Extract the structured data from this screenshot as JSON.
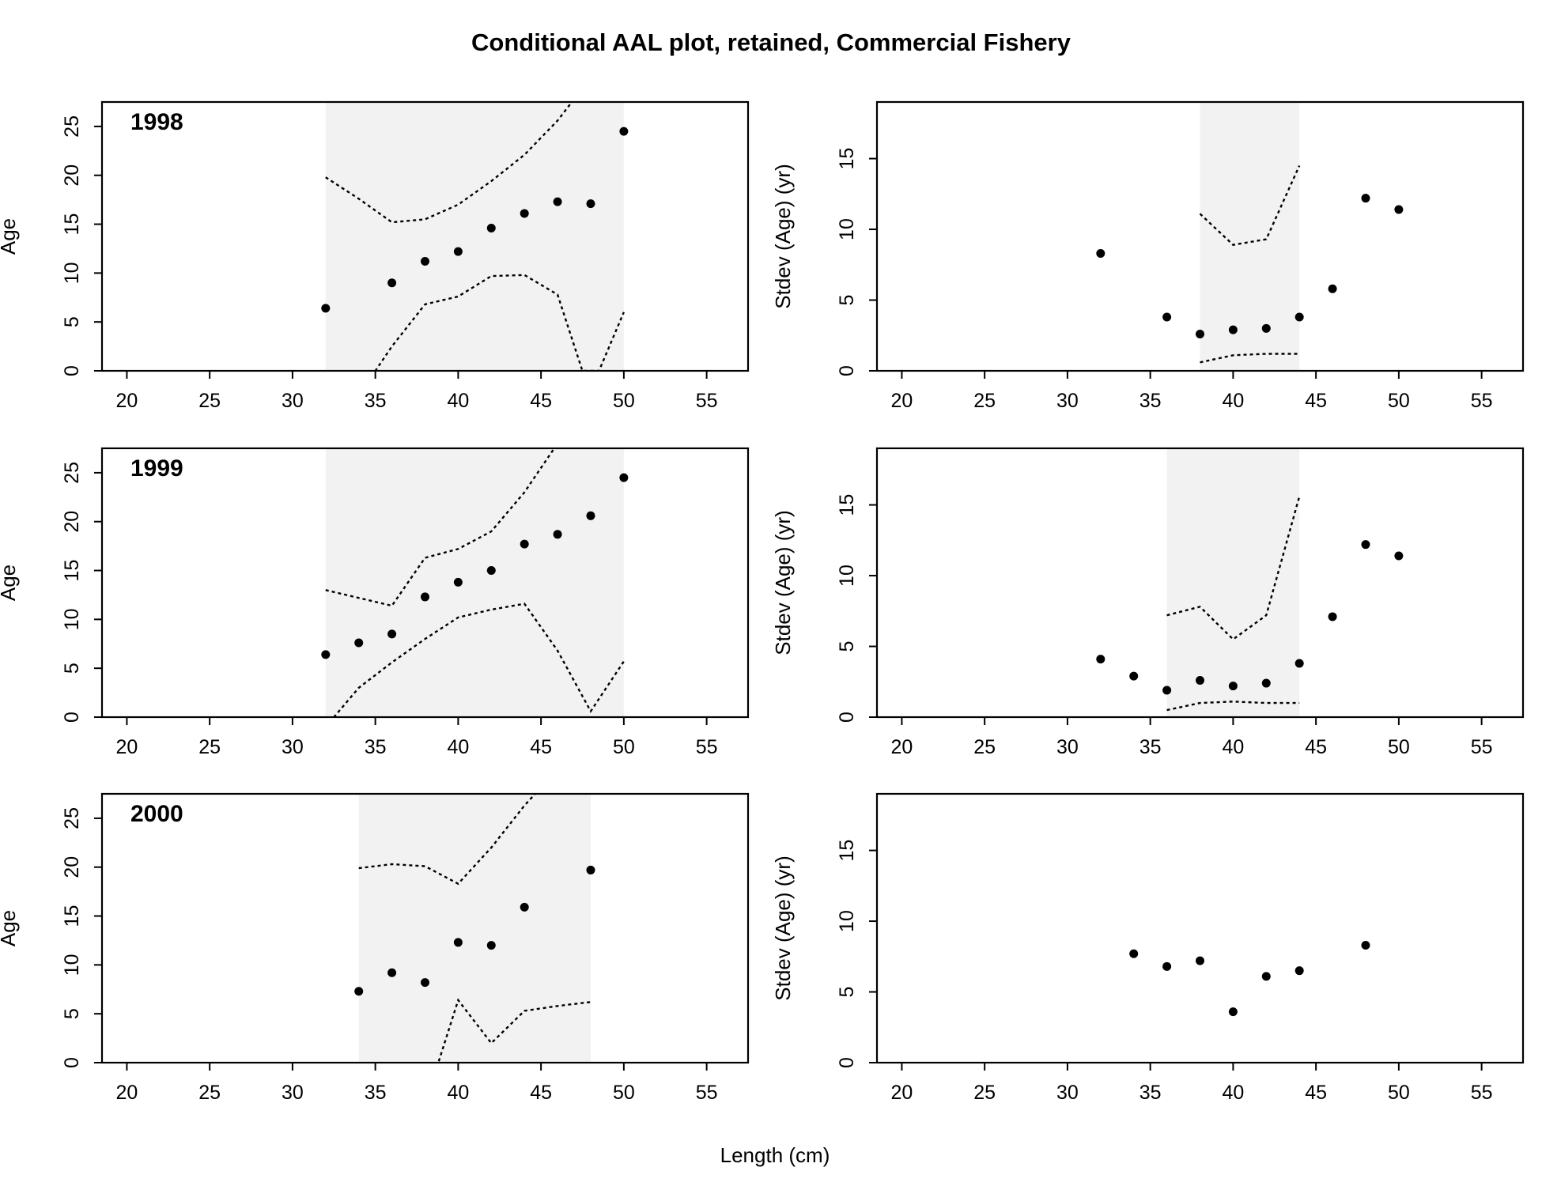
{
  "figure": {
    "title": "Conditional AAL plot, retained, Commercial Fishery",
    "xlabel": "Length (cm)"
  },
  "colors": {
    "band": "#f2f2f2",
    "points": "#000000",
    "lines": "#000000"
  },
  "chart_data": [
    {
      "type": "scatter",
      "panel": "1998 age",
      "label": "1998",
      "ylabel": "Age",
      "xlim": [
        18.5,
        57.5
      ],
      "ylim": [
        0,
        27.5
      ],
      "xticks": [
        20,
        25,
        30,
        35,
        40,
        45,
        50,
        55
      ],
      "yticks": [
        0,
        5,
        10,
        15,
        20,
        25
      ],
      "points": {
        "x": [
          32,
          36,
          38,
          40,
          42,
          44,
          46,
          48,
          50
        ],
        "y": [
          6.4,
          9.0,
          11.2,
          12.2,
          14.6,
          16.1,
          17.3,
          17.1,
          24.5
        ]
      },
      "band": {
        "upper": {
          "x": [
            32,
            34,
            36,
            38,
            40,
            42,
            44,
            46,
            48,
            50
          ],
          "y": [
            19.8,
            17.6,
            15.2,
            15.5,
            17.0,
            19.4,
            22.1,
            25.6,
            30.0,
            34.0
          ]
        },
        "lower": {
          "x": [
            32,
            34,
            35,
            36,
            38,
            40,
            42,
            44,
            46,
            47.5,
            48.5,
            50
          ],
          "y": [
            -5,
            -2,
            0,
            2.5,
            6.8,
            7.6,
            9.7,
            9.8,
            7.8,
            0,
            0,
            6.0
          ]
        }
      }
    },
    {
      "type": "scatter",
      "panel": "1998 stdev",
      "label": "",
      "ylabel": "Stdev (Age) (yr)",
      "xlim": [
        18.5,
        57.5
      ],
      "ylim": [
        0,
        19
      ],
      "xticks": [
        20,
        25,
        30,
        35,
        40,
        45,
        50,
        55
      ],
      "yticks": [
        0,
        5,
        10,
        15
      ],
      "points": {
        "x": [
          32,
          36,
          38,
          40,
          42,
          44,
          46,
          48,
          50
        ],
        "y": [
          8.3,
          3.8,
          2.6,
          2.9,
          3.0,
          3.8,
          5.8,
          12.2,
          11.4
        ]
      },
      "band": {
        "upper": {
          "x": [
            38,
            40,
            42,
            44
          ],
          "y": [
            11.1,
            8.9,
            9.3,
            14.5
          ]
        },
        "lower": {
          "x": [
            38,
            40,
            42,
            44
          ],
          "y": [
            0.6,
            1.1,
            1.2,
            1.2
          ]
        }
      }
    },
    {
      "type": "scatter",
      "panel": "1999 age",
      "label": "1999",
      "ylabel": "Age",
      "xlim": [
        18.5,
        57.5
      ],
      "ylim": [
        0,
        27.5
      ],
      "xticks": [
        20,
        25,
        30,
        35,
        40,
        45,
        50,
        55
      ],
      "yticks": [
        0,
        5,
        10,
        15,
        20,
        25
      ],
      "points": {
        "x": [
          32,
          34,
          36,
          38,
          40,
          42,
          44,
          46,
          48,
          50
        ],
        "y": [
          6.4,
          7.6,
          8.5,
          12.3,
          13.8,
          15.0,
          17.7,
          18.7,
          20.6,
          24.5
        ]
      },
      "band": {
        "upper": {
          "x": [
            32,
            34,
            36,
            38,
            40,
            42,
            44,
            46,
            48,
            50
          ],
          "y": [
            13.0,
            12.2,
            11.4,
            16.3,
            17.2,
            19.0,
            23.0,
            28.0,
            33.0,
            38.0
          ]
        },
        "lower": {
          "x": [
            32,
            32.5,
            34,
            36,
            38,
            40,
            42,
            44,
            46,
            48,
            50
          ],
          "y": [
            -1,
            0,
            3.0,
            5.6,
            8.0,
            10.2,
            11.0,
            11.6,
            6.8,
            0.6,
            5.7
          ]
        }
      }
    },
    {
      "type": "scatter",
      "panel": "1999 stdev",
      "label": "",
      "ylabel": "Stdev (Age) (yr)",
      "xlim": [
        18.5,
        57.5
      ],
      "ylim": [
        0,
        19
      ],
      "xticks": [
        20,
        25,
        30,
        35,
        40,
        45,
        50,
        55
      ],
      "yticks": [
        0,
        5,
        10,
        15
      ],
      "points": {
        "x": [
          32,
          34,
          36,
          38,
          40,
          42,
          44,
          46,
          48,
          50
        ],
        "y": [
          4.1,
          2.9,
          1.9,
          2.6,
          2.2,
          2.4,
          3.8,
          7.1,
          12.2,
          11.4
        ]
      },
      "band": {
        "upper": {
          "x": [
            36,
            38,
            40,
            42,
            44
          ],
          "y": [
            7.2,
            7.8,
            5.5,
            7.2,
            15.6
          ]
        },
        "lower": {
          "x": [
            36,
            38,
            40,
            42,
            44
          ],
          "y": [
            0.5,
            1.0,
            1.1,
            1.0,
            1.0
          ]
        }
      }
    },
    {
      "type": "scatter",
      "panel": "2000 age",
      "label": "2000",
      "ylabel": "Age",
      "xlim": [
        18.5,
        57.5
      ],
      "ylim": [
        0,
        27.5
      ],
      "xticks": [
        20,
        25,
        30,
        35,
        40,
        45,
        50,
        55
      ],
      "yticks": [
        0,
        5,
        10,
        15,
        20,
        25
      ],
      "points": {
        "x": [
          34,
          36,
          38,
          40,
          42,
          44,
          48
        ],
        "y": [
          7.3,
          9.2,
          8.2,
          12.3,
          12.0,
          15.9,
          19.7
        ]
      },
      "band": {
        "upper": {
          "x": [
            34,
            36,
            38,
            40,
            42,
            44,
            46,
            48
          ],
          "y": [
            19.9,
            20.3,
            20.1,
            18.3,
            22.0,
            26.3,
            30.0,
            34.0
          ]
        },
        "lower": {
          "x": [
            34,
            36,
            38,
            38.8,
            40,
            42,
            44,
            46,
            48
          ],
          "y": [
            -5,
            -3,
            -1,
            0,
            6.4,
            2.0,
            5.3,
            5.8,
            6.2
          ]
        }
      }
    },
    {
      "type": "scatter",
      "panel": "2000 stdev",
      "label": "",
      "ylabel": "Stdev (Age) (yr)",
      "xlim": [
        18.5,
        57.5
      ],
      "ylim": [
        0,
        19
      ],
      "xticks": [
        20,
        25,
        30,
        35,
        40,
        45,
        50,
        55
      ],
      "yticks": [
        0,
        5,
        10,
        15
      ],
      "points": {
        "x": [
          34,
          36,
          38,
          40,
          42,
          44,
          48
        ],
        "y": [
          7.7,
          6.8,
          7.2,
          3.6,
          6.1,
          6.5,
          8.3
        ]
      },
      "band": null
    }
  ]
}
